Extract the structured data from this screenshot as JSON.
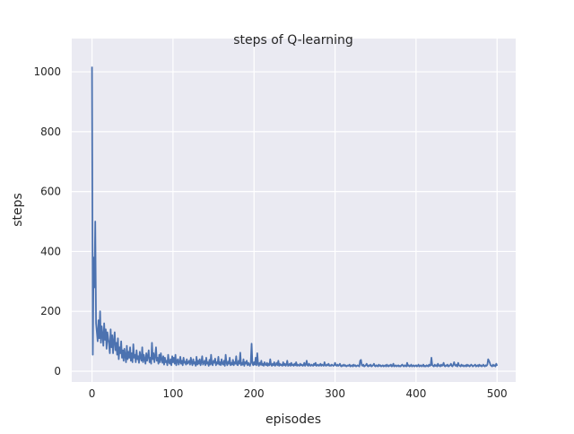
{
  "chart_data": {
    "type": "line",
    "title": "steps of Q-learning",
    "xlabel": "episodes",
    "ylabel": "steps",
    "xlim": [
      -25,
      523
    ],
    "ylim": [
      -36,
      1111
    ],
    "xticks": [
      0,
      100,
      200,
      300,
      400,
      500
    ],
    "yticks": [
      0,
      200,
      400,
      600,
      800,
      1000
    ],
    "grid": true,
    "style": "darkgrid",
    "colors": {
      "background": "#eaeaf2",
      "grid": "#ffffff",
      "line": "#4c72b0"
    },
    "x_start": 0,
    "values": [
      1017,
      55,
      380,
      280,
      500,
      160,
      130,
      100,
      170,
      110,
      200,
      95,
      150,
      120,
      85,
      160,
      105,
      140,
      75,
      130,
      110,
      90,
      60,
      140,
      80,
      120,
      60,
      100,
      130,
      70,
      95,
      55,
      110,
      40,
      80,
      60,
      100,
      45,
      70,
      35,
      75,
      50,
      30,
      85,
      40,
      65,
      45,
      80,
      35,
      60,
      30,
      90,
      45,
      55,
      30,
      70,
      40,
      50,
      28,
      65,
      45,
      35,
      80,
      30,
      55,
      40,
      25,
      60,
      35,
      50,
      70,
      30,
      45,
      25,
      95,
      40,
      60,
      30,
      50,
      80,
      35,
      45,
      25,
      55,
      30,
      60,
      40,
      28,
      50,
      22,
      45,
      30,
      35,
      20,
      55,
      30,
      25,
      40,
      20,
      50,
      30,
      45,
      25,
      55,
      20,
      35,
      40,
      22,
      30,
      48,
      25,
      35,
      20,
      45,
      28,
      32,
      22,
      40,
      25,
      30,
      35,
      22,
      45,
      28,
      20,
      40,
      25,
      30,
      18,
      48,
      22,
      35,
      25,
      40,
      20,
      30,
      50,
      22,
      28,
      35,
      20,
      45,
      25,
      30,
      18,
      38,
      22,
      55,
      25,
      20,
      35,
      28,
      42,
      20,
      30,
      25,
      48,
      22,
      30,
      20,
      40,
      25,
      22,
      35,
      18,
      55,
      28,
      20,
      32,
      25,
      45,
      20,
      28,
      22,
      38,
      20,
      30,
      25,
      50,
      22,
      20,
      35,
      25,
      62,
      20,
      28,
      22,
      40,
      18,
      30,
      25,
      35,
      20,
      28,
      22,
      18,
      30,
      92,
      25,
      20,
      30,
      22,
      45,
      20,
      60,
      25,
      18,
      28,
      22,
      35,
      20,
      25,
      18,
      30,
      22,
      20,
      28,
      18,
      25,
      20,
      40,
      22,
      18,
      25,
      20,
      30,
      18,
      22,
      28,
      20,
      35,
      18,
      25,
      20,
      22,
      18,
      30,
      20,
      25,
      18,
      22,
      35,
      18,
      20,
      25,
      18,
      28,
      20,
      22,
      18,
      25,
      20,
      30,
      18,
      22,
      20,
      18,
      25,
      20,
      22,
      18,
      20,
      28,
      18,
      22,
      35,
      20,
      18,
      25,
      20,
      18,
      22,
      20,
      18,
      25,
      20,
      28,
      18,
      20,
      22,
      18,
      20,
      25,
      18,
      22,
      20,
      18,
      30,
      20,
      18,
      22,
      20,
      25,
      18,
      20,
      18,
      22,
      20,
      18,
      20,
      28,
      20,
      18,
      22,
      18,
      20,
      25,
      18,
      16,
      20,
      18,
      22,
      18,
      20,
      16,
      18,
      20,
      18,
      22,
      16,
      18,
      20,
      16,
      22,
      18,
      20,
      16,
      18,
      20,
      18,
      16,
      35,
      38,
      20,
      18,
      22,
      16,
      18,
      20,
      25,
      18,
      16,
      20,
      18,
      22,
      16,
      18,
      20,
      25,
      18,
      16,
      20,
      18,
      16,
      22,
      18,
      20,
      16,
      18,
      20,
      16,
      18,
      20,
      16,
      22,
      18,
      16,
      20,
      18,
      22,
      16,
      18,
      25,
      16,
      18,
      20,
      16,
      18,
      20,
      16,
      18,
      16,
      20,
      22,
      18,
      16,
      20,
      18,
      16,
      28,
      18,
      20,
      16,
      18,
      22,
      16,
      18,
      20,
      16,
      18,
      20,
      16,
      18,
      22,
      16,
      18,
      20,
      16,
      18,
      22,
      16,
      18,
      16,
      20,
      18,
      16,
      22,
      18,
      20,
      45,
      20,
      18,
      16,
      22,
      18,
      20,
      16,
      25,
      18,
      20,
      16,
      22,
      18,
      20,
      28,
      18,
      16,
      20,
      18,
      22,
      16,
      18,
      20,
      25,
      18,
      16,
      22,
      30,
      20,
      18,
      22,
      16,
      28,
      20,
      18,
      16,
      22,
      18,
      20,
      16,
      18,
      20,
      16,
      22,
      18,
      20,
      16,
      18,
      22,
      20,
      16,
      18,
      20,
      22,
      16,
      18,
      20,
      16,
      22,
      18,
      20,
      16,
      18,
      22,
      18,
      16,
      20,
      18,
      22,
      40,
      35,
      28,
      20,
      18,
      16,
      22,
      18,
      20,
      16,
      25,
      18
    ]
  }
}
